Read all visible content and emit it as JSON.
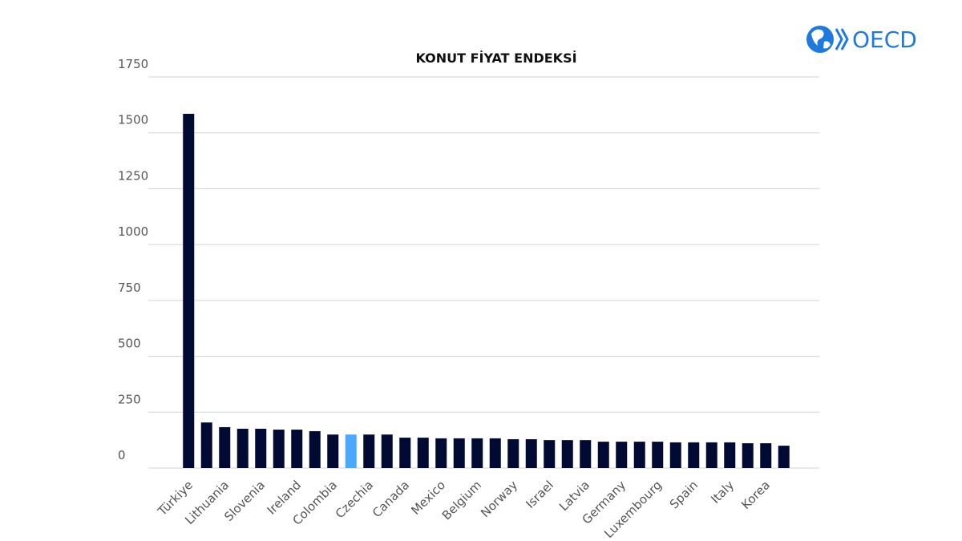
{
  "logo": "OECD",
  "chart_data": {
    "type": "bar",
    "title": "KONUT FİYAT ENDEKSİ",
    "categories": [
      "Türkiye",
      null,
      "Lithuania",
      null,
      "Slovenia",
      null,
      "Ireland",
      null,
      "Colombia",
      null,
      "Czechia",
      null,
      "Canada",
      null,
      "Mexico",
      null,
      "Belgium",
      null,
      "Norway",
      null,
      "Israel",
      null,
      "Latvia",
      null,
      "Germany",
      null,
      "Luxembourg",
      null,
      "Spain",
      null,
      "Italy",
      null,
      "Korea",
      null
    ],
    "values": [
      1585,
      204,
      183,
      176,
      176,
      172,
      172,
      165,
      150,
      150,
      150,
      150,
      136,
      136,
      133,
      133,
      133,
      133,
      129,
      129,
      125,
      125,
      125,
      118,
      118,
      118,
      118,
      115,
      115,
      115,
      115,
      111,
      111,
      100
    ],
    "colors": [
      "#000a33",
      "#000a33",
      "#000a33",
      "#000a33",
      "#000a33",
      "#000a33",
      "#000a33",
      "#000a33",
      "#000a33",
      "#4aa8ff",
      "#000a33",
      "#000a33",
      "#000a33",
      "#000a33",
      "#000a33",
      "#000a33",
      "#000a33",
      "#000a33",
      "#000a33",
      "#000a33",
      "#000a33",
      "#000a33",
      "#000a33",
      "#000a33",
      "#000a33",
      "#000a33",
      "#000a33",
      "#000a33",
      "#000a33",
      "#000a33",
      "#000a33",
      "#000a33",
      "#000a33",
      "#000a33"
    ],
    "ylim": [
      0,
      1750
    ],
    "yticks": [
      0,
      250,
      500,
      750,
      1000,
      1250,
      1500,
      1750
    ],
    "grid": true
  }
}
